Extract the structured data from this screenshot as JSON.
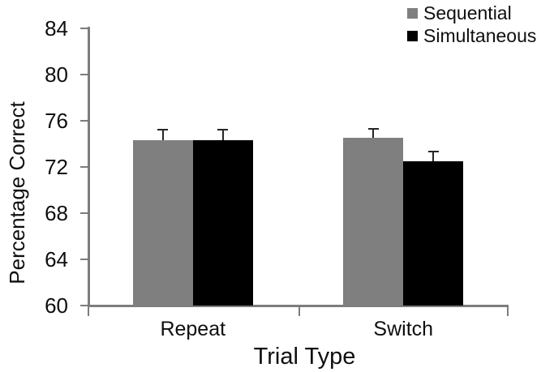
{
  "chart_data": {
    "type": "bar",
    "title": "",
    "xlabel": "Trial Type",
    "ylabel": "Percentage Correct",
    "categories": [
      "Repeat",
      "Switch"
    ],
    "series": [
      {
        "name": "Sequential",
        "color": "#7f7f7f",
        "values": [
          74.3,
          74.5
        ],
        "errors": [
          0.9,
          0.8
        ]
      },
      {
        "name": "Simultaneous",
        "color": "#000000",
        "values": [
          74.3,
          72.5
        ],
        "errors": [
          0.9,
          0.8
        ]
      }
    ],
    "ylim": [
      60,
      84
    ],
    "yticks": [
      60,
      64,
      68,
      72,
      76,
      80,
      84
    ],
    "grid": false,
    "legend_position": "top-right",
    "error_bars": "upper-only",
    "axis_color": "#7d7d7d"
  }
}
